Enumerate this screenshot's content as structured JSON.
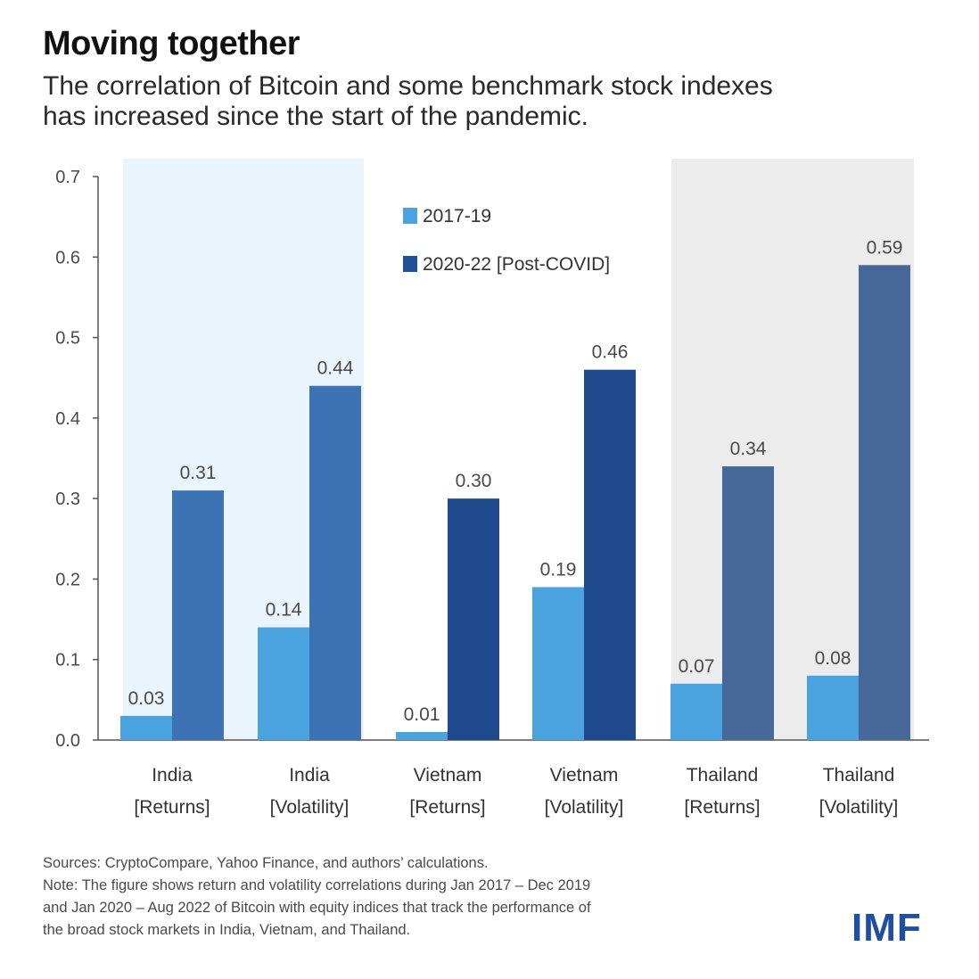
{
  "header": {
    "title": "Moving together",
    "subtitle_lines": [
      "The correlation of Bitcoin and some benchmark stock indexes",
      "has increased since the start of the pandemic."
    ]
  },
  "chart_data": {
    "type": "bar",
    "categories": [
      [
        "India",
        "[Returns]"
      ],
      [
        "India",
        "[Volatility]"
      ],
      [
        "Vietnam",
        "[Returns]"
      ],
      [
        "Vietnam",
        "[Volatility]"
      ],
      [
        "Thailand",
        "[Returns]"
      ],
      [
        "Thailand",
        "[Volatility]"
      ]
    ],
    "series": [
      {
        "name": "2017-19",
        "values": [
          0.03,
          0.14,
          0.01,
          0.19,
          0.07,
          0.08
        ],
        "labels": [
          "0.03",
          "0.14",
          "0.01",
          "0.19",
          "0.07",
          "0.08"
        ]
      },
      {
        "name": "2020-22 [Post-COVID]",
        "values": [
          0.31,
          0.44,
          0.3,
          0.46,
          0.34,
          0.59
        ],
        "labels": [
          "0.31",
          "0.44",
          "0.30",
          "0.46",
          "0.34",
          "0.59"
        ]
      }
    ],
    "ylim": [
      0,
      0.7
    ],
    "yticks": [
      "0.0",
      "0.1",
      "0.2",
      "0.3",
      "0.4",
      "0.5",
      "0.6",
      "0.7"
    ],
    "legend_position": "top-center",
    "region_shading": [
      "India",
      "none",
      "Thailand"
    ]
  },
  "colors": {
    "series_2017": "#4aa3df",
    "series_2020_legend": "#1f4f99",
    "region_bars_2020": [
      "#3d72b4",
      "#1f4a8e",
      "#46699a"
    ],
    "region_bg": [
      "#eaf4fd",
      "#ffffff",
      "#ececec"
    ],
    "axis": "#555555",
    "label_text": "#4a4a4a",
    "logo": "#1f4fa3"
  },
  "footer": {
    "sources": "Sources: CryptoCompare,  Yahoo Finance, and authors’ calculations.",
    "note_lines": [
      "Note: The figure shows return and volatility correlations during Jan 2017 – Dec 2019",
      "and Jan 2020 – Aug 2022 of Bitcoin with equity indices that track the performance of",
      "the broad stock markets in India, Vietnam, and Thailand."
    ],
    "logo": "IMF"
  }
}
